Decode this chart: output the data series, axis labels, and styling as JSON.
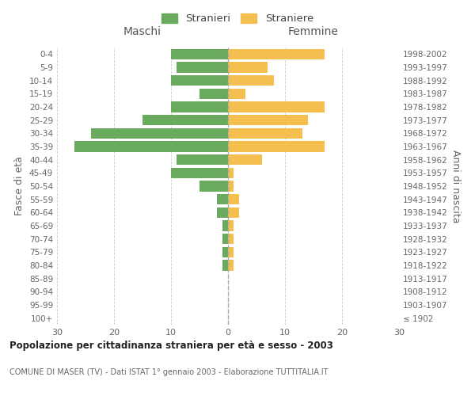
{
  "age_groups": [
    "100+",
    "95-99",
    "90-94",
    "85-89",
    "80-84",
    "75-79",
    "70-74",
    "65-69",
    "60-64",
    "55-59",
    "50-54",
    "45-49",
    "40-44",
    "35-39",
    "30-34",
    "25-29",
    "20-24",
    "15-19",
    "10-14",
    "5-9",
    "0-4"
  ],
  "birth_years": [
    "≤ 1902",
    "1903-1907",
    "1908-1912",
    "1913-1917",
    "1918-1922",
    "1923-1927",
    "1928-1932",
    "1933-1937",
    "1938-1942",
    "1943-1947",
    "1948-1952",
    "1953-1957",
    "1958-1962",
    "1963-1967",
    "1968-1972",
    "1973-1977",
    "1978-1982",
    "1983-1987",
    "1988-1992",
    "1993-1997",
    "1998-2002"
  ],
  "maschi": [
    0,
    0,
    0,
    0,
    1,
    1,
    1,
    1,
    2,
    2,
    5,
    10,
    9,
    27,
    24,
    15,
    10,
    5,
    10,
    9,
    10
  ],
  "femmine": [
    0,
    0,
    0,
    0,
    1,
    1,
    1,
    1,
    2,
    2,
    1,
    1,
    6,
    17,
    13,
    14,
    17,
    3,
    8,
    7,
    17
  ],
  "color_maschi": "#6aaa5e",
  "color_femmine": "#f5bf4f",
  "title_main": "Popolazione per cittadinanza straniera per età e sesso - 2003",
  "title_sub": "COMUNE DI MASER (TV) - Dati ISTAT 1° gennaio 2003 - Elaborazione TUTTITALIA.IT",
  "legend_stranieri": "Stranieri",
  "legend_straniere": "Straniere",
  "xlabel_left": "Maschi",
  "xlabel_right": "Femmine",
  "ylabel_left": "Fasce di età",
  "ylabel_right": "Anni di nascita",
  "xlim": 30,
  "background_color": "#ffffff",
  "grid_color": "#cccccc"
}
